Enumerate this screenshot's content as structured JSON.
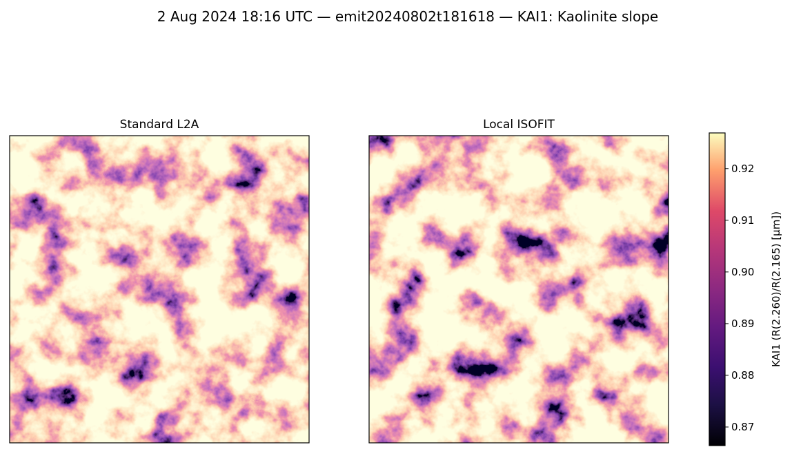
{
  "chart_data": {
    "type": "image",
    "title": "2 Aug 2024 18:16 UTC — emit20240802t181618 — KAI1: Kaolinite slope",
    "panels": [
      {
        "title": "Standard L2A"
      },
      {
        "title": "Local ISOFIT"
      }
    ],
    "colormap": "magma",
    "colorbar": {
      "label": "KAI1  (R(2.260)/R(2.165)  [µm])",
      "lim": [
        0.8664,
        0.9269
      ],
      "ticks": [
        0.87,
        0.88,
        0.89,
        0.9,
        0.91,
        0.92
      ]
    }
  }
}
